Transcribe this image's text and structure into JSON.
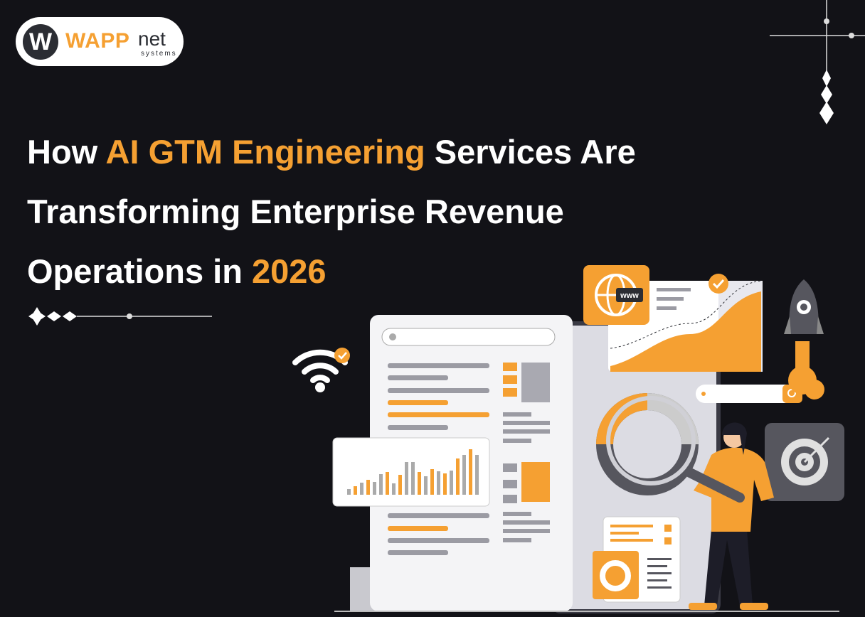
{
  "logo": {
    "brand": "WAPP",
    "suffix": "net",
    "tagline": "systems"
  },
  "headline": {
    "lines": [
      [
        {
          "text": "How ",
          "color": "#ffffff"
        },
        {
          "text": "AI GTM Engineering",
          "color": "#f5a032"
        },
        {
          "text": " Services Are",
          "color": "#ffffff"
        }
      ],
      [
        {
          "text": "Transforming Enterprise Revenue",
          "color": "#ffffff"
        }
      ],
      [
        {
          "text": "Operations in ",
          "color": "#ffffff"
        },
        {
          "text": "2026",
          "color": "#f5a032"
        }
      ]
    ]
  },
  "illustration": {
    "globe_label": "www"
  }
}
